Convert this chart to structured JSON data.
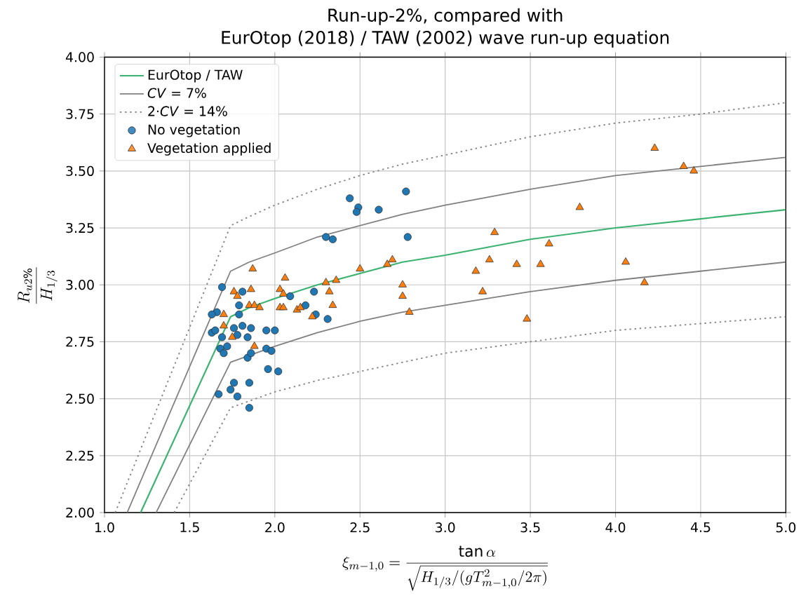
{
  "chart_data": {
    "type": "scatter",
    "title": "Run-up-2%, compared with",
    "subtitle": "EurOtop (2018) / TAW (2002) wave run-up equation",
    "xlabel": "\\xi_{m-1,0} = \\frac{\\tan\\alpha}{\\sqrt{H_{1/3}/(gT^{2}_{m-1,0}/2\\pi)}}",
    "ylabel": "\\frac{R_{u2\\%}}{H_{1/3}}",
    "xlim": [
      1.0,
      5.0
    ],
    "ylim": [
      2.0,
      4.0
    ],
    "xticks": [
      {
        "value": 1.0,
        "label": "1.0"
      },
      {
        "value": 1.5,
        "label": "1.5"
      },
      {
        "value": 2.0,
        "label": "2.0"
      },
      {
        "value": 2.5,
        "label": "2.5"
      },
      {
        "value": 3.0,
        "label": "3.0"
      },
      {
        "value": 3.5,
        "label": "3.5"
      },
      {
        "value": 4.0,
        "label": "4.0"
      },
      {
        "value": 4.5,
        "label": "4.5"
      },
      {
        "value": 5.0,
        "label": "5.0"
      }
    ],
    "yticks": [
      {
        "value": 2.0,
        "label": "2.00"
      },
      {
        "value": 2.25,
        "label": "2.25"
      },
      {
        "value": 2.5,
        "label": "2.50"
      },
      {
        "value": 2.75,
        "label": "2.75"
      },
      {
        "value": 3.0,
        "label": "3.00"
      },
      {
        "value": 3.25,
        "label": "3.25"
      },
      {
        "value": 3.5,
        "label": "3.50"
      },
      {
        "value": 3.75,
        "label": "3.75"
      },
      {
        "value": 4.0,
        "label": "4.00"
      }
    ],
    "grid": true,
    "legend": "top left",
    "series": [
      {
        "name": "EurOtop / TAW",
        "type": "line",
        "color": "#3cb371",
        "marker": "none",
        "line_style": "solid",
        "x": [
          1.212,
          1.74,
          1.85,
          2.0,
          2.25,
          2.5,
          2.75,
          3.0,
          3.5,
          4.0,
          4.5,
          5.0
        ],
        "values": [
          2.0,
          2.86,
          2.9,
          2.94,
          3.0,
          3.05,
          3.1,
          3.13,
          3.2,
          3.25,
          3.29,
          3.33
        ]
      },
      {
        "name": "*CV* = 7%",
        "type": "line",
        "color": "#808080",
        "marker": "none",
        "line_style": "solid",
        "x": [
          1.133,
          1.74,
          1.85,
          2.0,
          2.25,
          2.5,
          2.75,
          3.0,
          3.5,
          4.0,
          4.5,
          5.0
        ],
        "values": [
          2.0,
          3.06,
          3.1,
          3.14,
          3.21,
          3.26,
          3.31,
          3.35,
          3.42,
          3.48,
          3.52,
          3.56
        ]
      },
      {
        "type": "line",
        "color": "#808080",
        "marker": "none",
        "line_style": "solid",
        "x": [
          1.303,
          1.74,
          1.85,
          2.0,
          2.25,
          2.5,
          2.75,
          3.0,
          3.5,
          4.0,
          4.5,
          5.0
        ],
        "values": [
          2.0,
          2.66,
          2.69,
          2.73,
          2.79,
          2.84,
          2.88,
          2.91,
          2.97,
          3.02,
          3.06,
          3.1
        ]
      },
      {
        "name": "2·*CV* = 14%",
        "type": "line",
        "color": "#808080",
        "marker": "none",
        "line_style": "dotted",
        "x": [
          1.063,
          1.74,
          1.85,
          2.0,
          2.25,
          2.5,
          2.75,
          3.0,
          3.5,
          4.0,
          4.5,
          5.0
        ],
        "values": [
          2.0,
          3.26,
          3.3,
          3.35,
          3.42,
          3.48,
          3.53,
          3.57,
          3.65,
          3.71,
          3.75,
          3.8
        ]
      },
      {
        "type": "line",
        "color": "#808080",
        "marker": "none",
        "line_style": "dotted",
        "x": [
          1.409,
          1.74,
          1.85,
          2.0,
          2.25,
          2.5,
          2.75,
          3.0,
          3.5,
          4.0,
          4.5,
          5.0
        ],
        "values": [
          2.0,
          2.46,
          2.49,
          2.53,
          2.58,
          2.62,
          2.66,
          2.7,
          2.75,
          2.8,
          2.83,
          2.86
        ]
      },
      {
        "name": "No vegetation",
        "color": "#1f77b4",
        "marker": "circle",
        "x": [
          1.69,
          1.81,
          1.66,
          1.63,
          1.63,
          1.65,
          1.79,
          1.79,
          1.76,
          1.81,
          1.78,
          1.69,
          1.68,
          1.7,
          1.72,
          1.84,
          1.86,
          1.95,
          2.0,
          1.95,
          1.98,
          1.84,
          1.86,
          1.96,
          2.02,
          1.76,
          1.74,
          1.67,
          1.78,
          1.85,
          1.85,
          2.09,
          2.23,
          2.18,
          2.24,
          2.31,
          2.44,
          2.49,
          2.48,
          2.61,
          2.77,
          2.78,
          2.3,
          2.34
        ],
        "values": [
          2.99,
          2.97,
          2.88,
          2.87,
          2.79,
          2.8,
          2.91,
          2.87,
          2.81,
          2.82,
          2.78,
          2.77,
          2.72,
          2.7,
          2.73,
          2.77,
          2.81,
          2.8,
          2.8,
          2.72,
          2.71,
          2.68,
          2.7,
          2.63,
          2.62,
          2.57,
          2.54,
          2.52,
          2.51,
          2.57,
          2.46,
          2.95,
          2.97,
          2.91,
          2.87,
          2.85,
          3.38,
          3.34,
          3.32,
          3.33,
          3.41,
          3.21,
          3.21,
          3.2
        ]
      },
      {
        "name": "Vegetation applied",
        "color": "#ff7f0e",
        "marker": "triangle",
        "x": [
          1.87,
          2.06,
          1.76,
          1.78,
          1.86,
          2.03,
          2.05,
          2.3,
          2.36,
          2.32,
          2.5,
          1.7,
          1.85,
          1.88,
          1.91,
          2.03,
          2.05,
          2.13,
          2.15,
          2.22,
          2.34,
          1.7,
          1.75,
          1.88,
          2.66,
          2.69,
          2.75,
          2.75,
          2.79,
          3.18,
          3.22,
          3.26,
          3.29,
          3.42,
          3.48,
          3.56,
          3.61,
          3.79,
          4.06,
          4.17,
          4.23,
          4.4,
          4.46
        ],
        "values": [
          3.07,
          3.03,
          2.97,
          2.95,
          2.98,
          2.98,
          2.96,
          3.01,
          3.02,
          2.97,
          3.07,
          2.87,
          2.91,
          2.91,
          2.9,
          2.9,
          2.9,
          2.89,
          2.9,
          2.86,
          2.91,
          2.82,
          2.77,
          2.73,
          3.09,
          3.11,
          3.0,
          2.95,
          2.88,
          3.06,
          2.97,
          3.11,
          3.23,
          3.09,
          2.85,
          3.09,
          3.18,
          3.34,
          3.1,
          3.01,
          3.6,
          3.52,
          3.5
        ]
      }
    ]
  }
}
